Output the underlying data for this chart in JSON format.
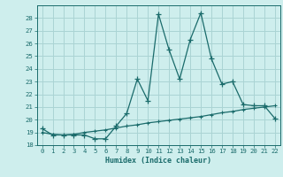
{
  "title": "",
  "xlabel": "Humidex (Indice chaleur)",
  "bg_color": "#ceeeed",
  "grid_color": "#aad4d4",
  "line_color": "#1a6b6b",
  "xlim": [
    -0.5,
    22.5
  ],
  "ylim": [
    18,
    29
  ],
  "xticks": [
    0,
    1,
    2,
    3,
    4,
    5,
    6,
    7,
    8,
    9,
    10,
    11,
    12,
    13,
    14,
    15,
    16,
    17,
    18,
    19,
    20,
    21,
    22
  ],
  "yticks": [
    18,
    19,
    20,
    21,
    22,
    23,
    24,
    25,
    26,
    27,
    28
  ],
  "series1_x": [
    0,
    1,
    2,
    3,
    4,
    5,
    6,
    7,
    8,
    9,
    10,
    11,
    12,
    13,
    14,
    15,
    16,
    17,
    18,
    19,
    20,
    21,
    22
  ],
  "series1_y": [
    19.3,
    18.8,
    18.8,
    18.8,
    18.8,
    18.5,
    18.5,
    19.5,
    20.5,
    23.2,
    21.5,
    28.3,
    25.5,
    23.2,
    26.3,
    28.4,
    24.8,
    22.8,
    23.0,
    21.2,
    21.1,
    21.1,
    20.1
  ],
  "series2_x": [
    0,
    1,
    2,
    3,
    4,
    5,
    6,
    7,
    8,
    9,
    10,
    11,
    12,
    13,
    14,
    15,
    16,
    17,
    18,
    19,
    20,
    21,
    22
  ],
  "series2_y": [
    19.0,
    18.85,
    18.8,
    18.85,
    19.0,
    19.1,
    19.2,
    19.35,
    19.5,
    19.6,
    19.75,
    19.85,
    19.95,
    20.05,
    20.15,
    20.25,
    20.4,
    20.55,
    20.65,
    20.8,
    20.9,
    21.0,
    21.1
  ]
}
